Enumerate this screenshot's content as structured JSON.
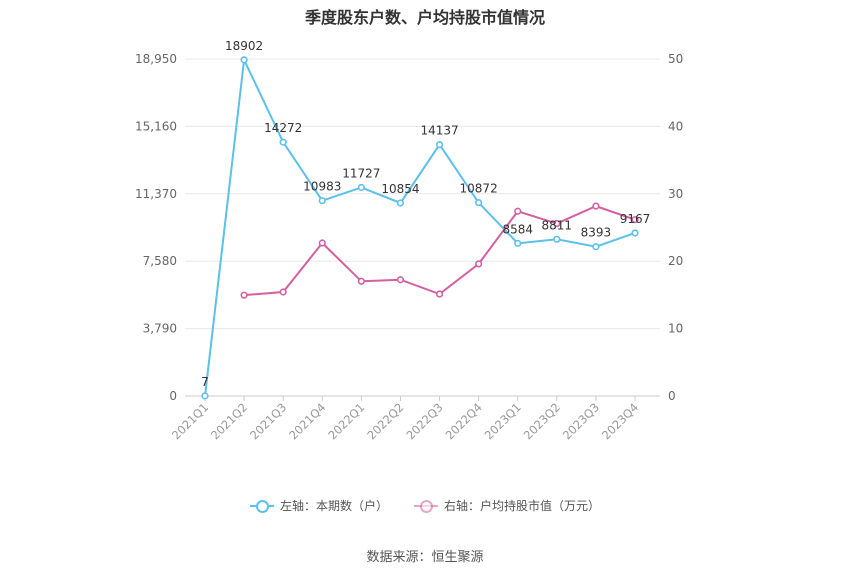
{
  "chart_data": {
    "type": "line",
    "title": "季度股东户数、户均持股市值情况",
    "categories": [
      "2021Q1",
      "2021Q2",
      "2021Q3",
      "2021Q4",
      "2022Q1",
      "2022Q2",
      "2022Q3",
      "2022Q4",
      "2023Q1",
      "2023Q2",
      "2023Q3",
      "2023Q4"
    ],
    "left_axis": {
      "ticks": [
        "0",
        "3,790",
        "7,580",
        "11,370",
        "15,160",
        "18,950"
      ],
      "min": 0,
      "max": 18950
    },
    "right_axis": {
      "ticks": [
        "0",
        "10",
        "20",
        "30",
        "40",
        "50"
      ],
      "min": 0,
      "max": 50
    },
    "grid": true,
    "legend_position": "bottom",
    "series": [
      {
        "name": "左轴：本期数（户）",
        "axis": "left",
        "color": "#5bc0eb",
        "values": [
          7,
          18902,
          14272,
          10983,
          11727,
          10854,
          14137,
          10872,
          8584,
          8811,
          8393,
          9167
        ],
        "labels": [
          "7",
          "18902",
          "14272",
          "10983",
          "11727",
          "10854",
          "14137",
          "10872",
          "8584",
          "8811",
          "8393",
          "9167"
        ]
      },
      {
        "name": "右轴：户均持股市值（万元）",
        "axis": "right",
        "color": "#d45fa0",
        "values": [
          null,
          14.96,
          15.43,
          22.7,
          17.02,
          17.25,
          15.13,
          19.6,
          27.41,
          25.59,
          28.17,
          26.16
        ]
      }
    ]
  },
  "source": "数据来源：恒生聚源"
}
